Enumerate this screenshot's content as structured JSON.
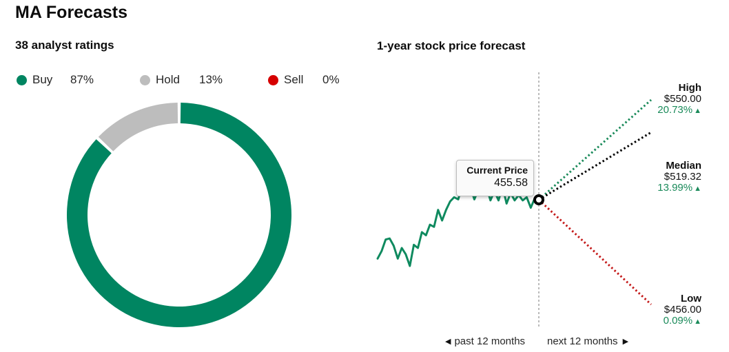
{
  "page": {
    "title": "MA Forecasts"
  },
  "ratings": {
    "title": "38 analyst ratings",
    "legend": [
      {
        "label": "Buy",
        "percent": "87%",
        "color": "#008561"
      },
      {
        "label": "Hold",
        "percent": "13%",
        "color": "#bdbdbd"
      },
      {
        "label": "Sell",
        "percent": "0%",
        "color": "#d60000"
      }
    ]
  },
  "forecast": {
    "title": "1-year stock price forecast",
    "current_price": {
      "label": "Current Price",
      "value": "455.58"
    },
    "targets": {
      "high": {
        "label": "High",
        "price": "$550.00",
        "change": "20.73%",
        "color": "#1a8a5a"
      },
      "median": {
        "label": "Median",
        "price": "$519.32",
        "change": "13.99%",
        "color": "#000000"
      },
      "low": {
        "label": "Low",
        "price": "$456.00",
        "change": "0.09%",
        "color": "#c41a1a"
      }
    },
    "past_label": "past 12 months",
    "next_label": "next 12 months",
    "up_icon": "triangle-up-icon"
  },
  "chart_data": [
    {
      "type": "pie",
      "title": "38 analyst ratings",
      "categories": [
        "Buy",
        "Hold",
        "Sell"
      ],
      "values": [
        87,
        13,
        0
      ],
      "colors": [
        "#008561",
        "#bdbdbd",
        "#d60000"
      ],
      "hole": "donut",
      "legend": "top"
    },
    {
      "type": "line",
      "title": "1-year stock price forecast",
      "xlabel": "",
      "ylabel": "",
      "past_series": {
        "name": "",
        "values": [
          400,
          407,
          418,
          419,
          412,
          400,
          410,
          404,
          393,
          413,
          410,
          425,
          422,
          432,
          430,
          446,
          436,
          446,
          454,
          458,
          456,
          469,
          475,
          468,
          456,
          465,
          460,
          468,
          455,
          464,
          455,
          468,
          452,
          462,
          455,
          460,
          455,
          458,
          448,
          457,
          455.58
        ]
      },
      "forecast_series": [
        {
          "name": "High",
          "start": 455.58,
          "end": 550.0
        },
        {
          "name": "Median",
          "start": 455.58,
          "end": 519.32
        },
        {
          "name": "Low",
          "start": 455.58,
          "end": 456.0
        }
      ],
      "current_value": 455.58,
      "grid": false
    }
  ]
}
